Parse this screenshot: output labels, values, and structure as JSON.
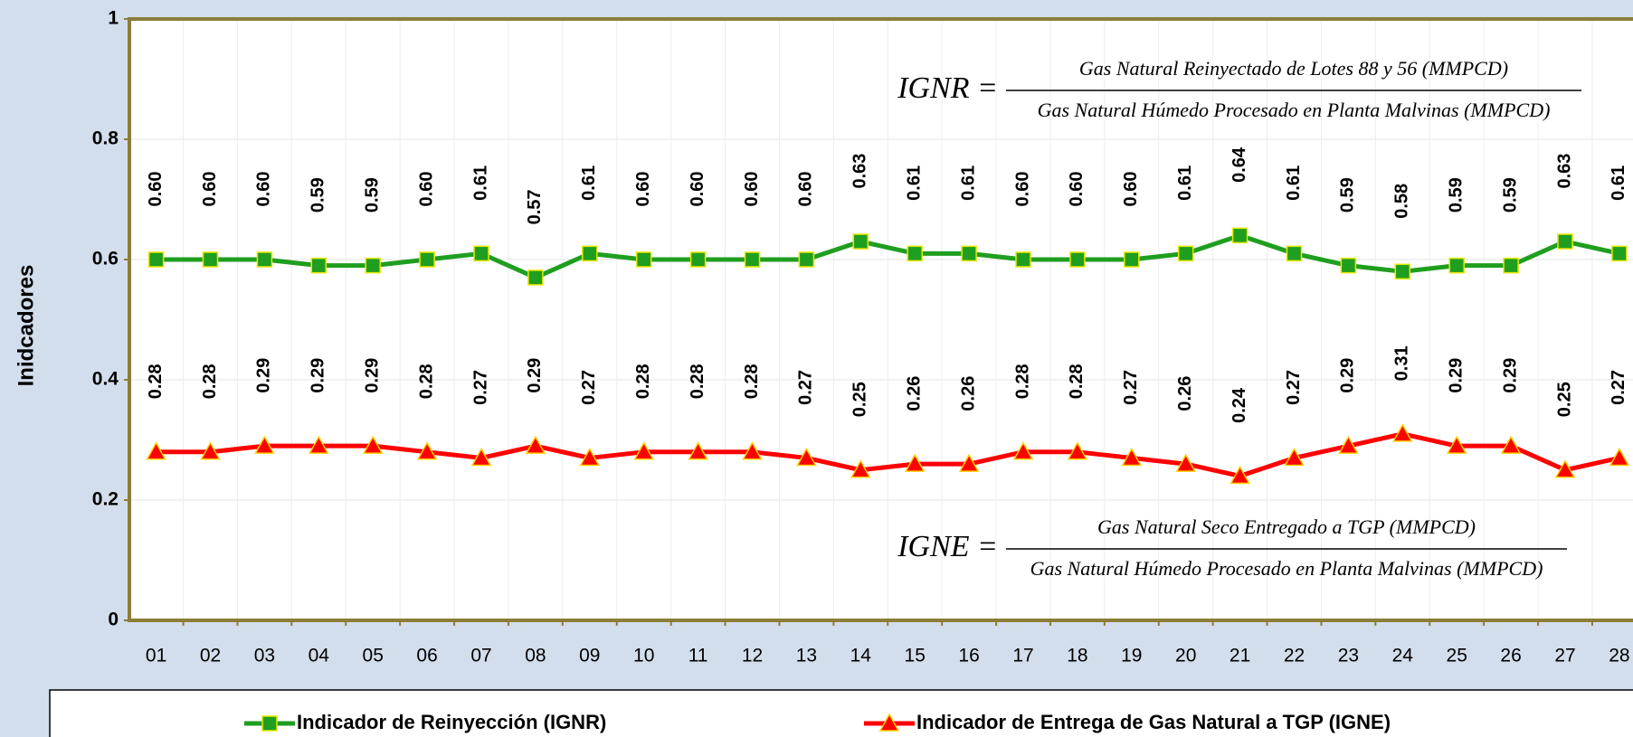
{
  "chart_data": {
    "type": "line",
    "y_label": "Inidcadores",
    "categories": [
      "01",
      "02",
      "03",
      "04",
      "05",
      "06",
      "07",
      "08",
      "09",
      "10",
      "11",
      "12",
      "13",
      "14",
      "15",
      "16",
      "17",
      "18",
      "19",
      "20",
      "21",
      "22",
      "23",
      "24",
      "25",
      "26",
      "27",
      "28"
    ],
    "ylim": [
      0,
      1
    ],
    "yticks": [
      0,
      0.2,
      0.4,
      0.6,
      0.8,
      1
    ],
    "grid": true,
    "series": [
      {
        "name": "Indicador de Reinyección (IGNR)",
        "color": "#1f9e1f",
        "marker": "square",
        "values": [
          0.6,
          0.6,
          0.6,
          0.59,
          0.59,
          0.6,
          0.61,
          0.57,
          0.61,
          0.6,
          0.6,
          0.6,
          0.6,
          0.63,
          0.61,
          0.61,
          0.6,
          0.6,
          0.6,
          0.61,
          0.64,
          0.61,
          0.59,
          0.58,
          0.59,
          0.59,
          0.63,
          0.61
        ],
        "value_labels": [
          "0.60",
          "0.60",
          "0.60",
          "0.59",
          "0.59",
          "0.60",
          "0.61",
          "0.57",
          "0.61",
          "0.60",
          "0.60",
          "0.60",
          "0.60",
          "0.63",
          "0.61",
          "0.61",
          "0.60",
          "0.60",
          "0.60",
          "0.61",
          "0.64",
          "0.61",
          "0.59",
          "0.58",
          "0.59",
          "0.59",
          "0.63",
          "0.61"
        ]
      },
      {
        "name": "Indicador de Entrega de Gas Natural a TGP (IGNE)",
        "color": "#ff0000",
        "marker": "triangle",
        "values": [
          0.28,
          0.28,
          0.29,
          0.29,
          0.29,
          0.28,
          0.27,
          0.29,
          0.27,
          0.28,
          0.28,
          0.28,
          0.27,
          0.25,
          0.26,
          0.26,
          0.28,
          0.28,
          0.27,
          0.26,
          0.24,
          0.27,
          0.29,
          0.31,
          0.29,
          0.29,
          0.25,
          0.27
        ],
        "value_labels": [
          "0.28",
          "0.28",
          "0.29",
          "0.29",
          "0.29",
          "0.28",
          "0.27",
          "0.29",
          "0.27",
          "0.28",
          "0.28",
          "0.28",
          "0.27",
          "0.25",
          "0.26",
          "0.26",
          "0.28",
          "0.28",
          "0.27",
          "0.26",
          "0.24",
          "0.27",
          "0.29",
          "0.31",
          "0.29",
          "0.29",
          "0.25",
          "0.27"
        ]
      }
    ],
    "annotations": [
      {
        "label": "IGNR =",
        "numerator": "Gas Natural Reinyectado de Lotes 88 y 56 (MMPCD)",
        "denominator": "Gas Natural Húmedo Procesado en Planta Malvinas (MMPCD)"
      },
      {
        "label": "IGNE =",
        "numerator": "Gas Natural Seco Entregado a TGP (MMPCD)",
        "denominator": "Gas Natural Húmedo Procesado en Planta Malvinas (MMPCD)"
      }
    ]
  }
}
